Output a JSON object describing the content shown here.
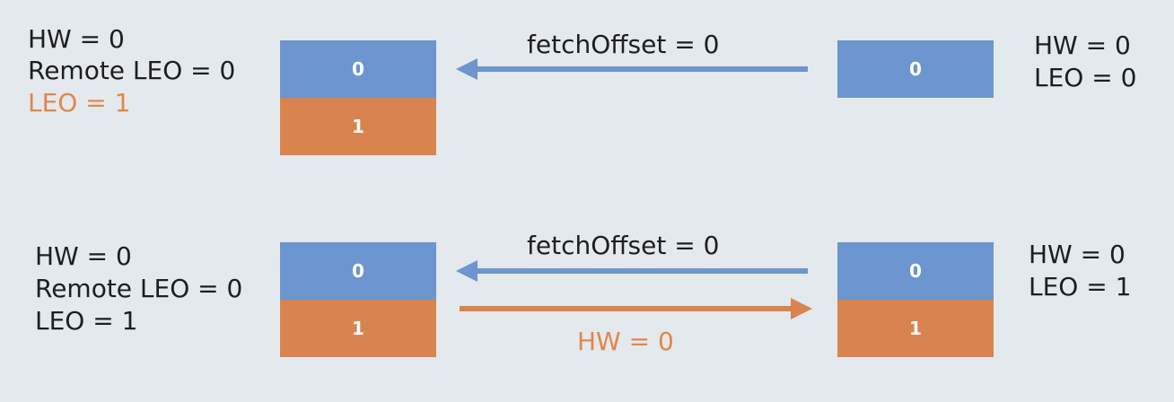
{
  "top": {
    "leader": {
      "hw": "HW = 0",
      "remote_leo": "Remote LEO = 0",
      "leo": "LEO = 1",
      "blocks": [
        "0",
        "1"
      ]
    },
    "request_label": "fetchOffset = 0",
    "follower": {
      "blocks": [
        "0"
      ],
      "hw": "HW = 0",
      "leo": "LEO = 0"
    }
  },
  "bottom": {
    "leader": {
      "hw": "HW = 0",
      "remote_leo": "Remote LEO = 0",
      "leo": "LEO = 1",
      "blocks": [
        "0",
        "1"
      ]
    },
    "request_label": "fetchOffset = 0",
    "response_label": "HW = 0",
    "follower": {
      "blocks": [
        "0",
        "1"
      ],
      "hw": "HW = 0",
      "leo": "LEO = 1"
    }
  },
  "colors": {
    "background": "#e3e9ed",
    "blue": "#6d95cf",
    "orange": "#d9844f",
    "text": "#1e1e1e",
    "highlight_text": "#e2874a"
  }
}
